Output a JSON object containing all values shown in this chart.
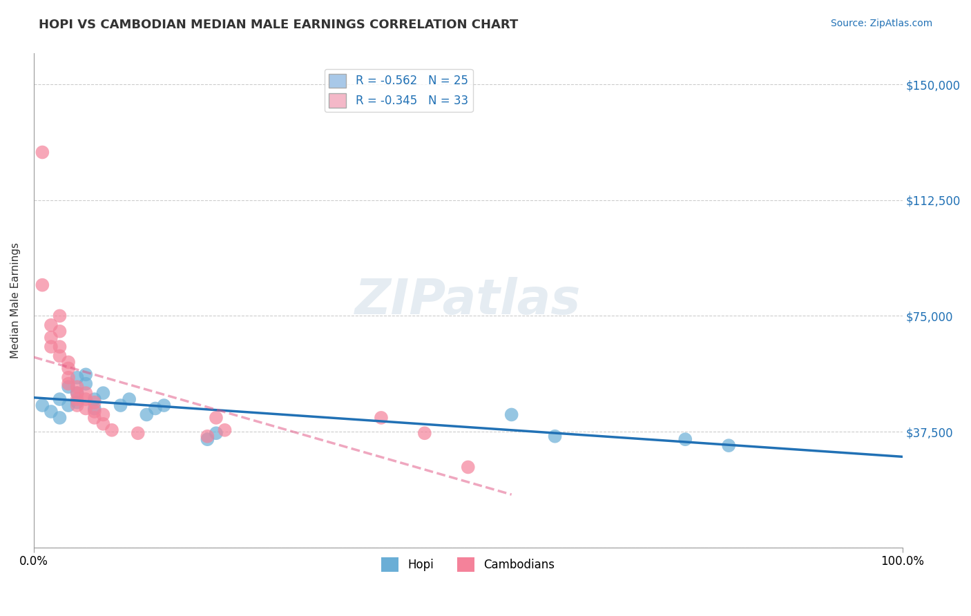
{
  "title": "HOPI VS CAMBODIAN MEDIAN MALE EARNINGS CORRELATION CHART",
  "source_text": "Source: ZipAtlas.com",
  "xlabel": "",
  "ylabel": "Median Male Earnings",
  "xlim": [
    0.0,
    1.0
  ],
  "ylim": [
    0,
    160000
  ],
  "yticks": [
    0,
    37500,
    75000,
    112500,
    150000
  ],
  "ytick_labels": [
    "",
    "$37,500",
    "$75,000",
    "$112,500",
    "$150,000"
  ],
  "xtick_labels": [
    "0.0%",
    "100.0%"
  ],
  "legend_entries": [
    {
      "label": "R = -0.562   N = 25",
      "color": "#a8c8e8"
    },
    {
      "label": "R = -0.345   N = 33",
      "color": "#f4b8c8"
    }
  ],
  "hopi_x": [
    0.01,
    0.02,
    0.03,
    0.03,
    0.04,
    0.04,
    0.05,
    0.05,
    0.05,
    0.06,
    0.06,
    0.07,
    0.07,
    0.08,
    0.1,
    0.11,
    0.13,
    0.14,
    0.15,
    0.2,
    0.21,
    0.55,
    0.6,
    0.75,
    0.8
  ],
  "hopi_y": [
    46000,
    44000,
    42000,
    48000,
    52000,
    46000,
    55000,
    50000,
    47000,
    53000,
    56000,
    45000,
    48000,
    50000,
    46000,
    48000,
    43000,
    45000,
    46000,
    35000,
    37000,
    43000,
    36000,
    35000,
    33000
  ],
  "cambodian_x": [
    0.01,
    0.01,
    0.02,
    0.02,
    0.02,
    0.03,
    0.03,
    0.03,
    0.03,
    0.04,
    0.04,
    0.04,
    0.04,
    0.05,
    0.05,
    0.05,
    0.05,
    0.06,
    0.06,
    0.06,
    0.07,
    0.07,
    0.07,
    0.08,
    0.08,
    0.09,
    0.12,
    0.2,
    0.21,
    0.22,
    0.4,
    0.45,
    0.5
  ],
  "cambodian_y": [
    128000,
    85000,
    68000,
    65000,
    72000,
    75000,
    70000,
    65000,
    62000,
    60000,
    58000,
    55000,
    53000,
    52000,
    50000,
    48000,
    46000,
    50000,
    48000,
    45000,
    44000,
    42000,
    47000,
    43000,
    40000,
    38000,
    37000,
    36000,
    42000,
    38000,
    42000,
    37000,
    26000
  ],
  "hopi_color": "#6aaed6",
  "cambodian_color": "#f4829a",
  "hopi_line_color": "#2171b5",
  "cambodian_line_color": "#e05080",
  "watermark": "ZIPatlas",
  "background_color": "#ffffff",
  "grid_color": "#cccccc",
  "title_fontsize": 13,
  "label_fontsize": 11
}
